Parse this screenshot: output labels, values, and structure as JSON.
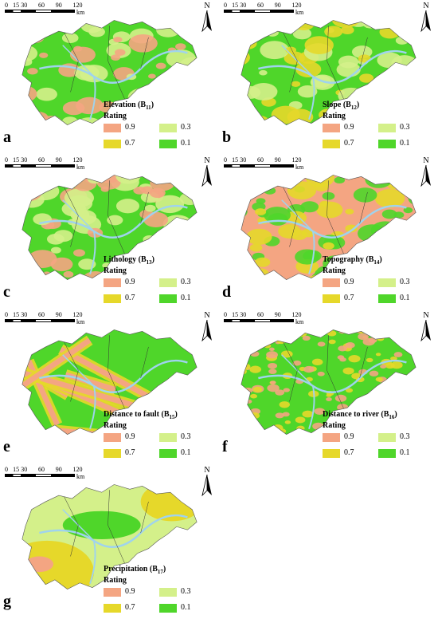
{
  "scale_labels": [
    "0",
    "15",
    "30",
    "60",
    "90",
    "120"
  ],
  "scale_unit": "km",
  "north_label": "N",
  "rating_label": "Rating",
  "legend": [
    {
      "value": "0.9",
      "color": "#f4a582"
    },
    {
      "value": "0.3",
      "color": "#d4f08a"
    },
    {
      "value": "0.7",
      "color": "#e6d82a"
    },
    {
      "value": "0.1",
      "color": "#4fd62a"
    }
  ],
  "colors": {
    "water": "#9fd3ee",
    "boundary": "#333333"
  },
  "panels": [
    {
      "letter": "a",
      "title": "Elevation (B",
      "sub": "11",
      "dominant": "#4fd62a",
      "accents": [
        "#d4f08a",
        "#f4a582"
      ]
    },
    {
      "letter": "b",
      "title": "Slope (B",
      "sub": "12",
      "dominant": "#4fd62a",
      "accents": [
        "#d4f08a",
        "#e6d82a"
      ]
    },
    {
      "letter": "c",
      "title": "Lithology (B",
      "sub": "13",
      "dominant": "#4fd62a",
      "accents": [
        "#f4a582",
        "#d4f08a"
      ]
    },
    {
      "letter": "d",
      "title": "Topography (B",
      "sub": "14",
      "dominant": "#f4a582",
      "accents": [
        "#4fd62a",
        "#e6d82a"
      ]
    },
    {
      "letter": "e",
      "title": "Distance to fault (B",
      "sub": "15",
      "dominant": "#4fd62a",
      "accents": [
        "#f4a582",
        "#e6d82a"
      ]
    },
    {
      "letter": "f",
      "title": "Distance to river (B",
      "sub": "16",
      "dominant": "#4fd62a",
      "accents": [
        "#f4a582",
        "#e6d82a"
      ]
    },
    {
      "letter": "g",
      "title": "Precipitation (B",
      "sub": "17",
      "dominant": "#d4f08a",
      "accents": [
        "#e6d82a",
        "#4fd62a"
      ]
    }
  ]
}
